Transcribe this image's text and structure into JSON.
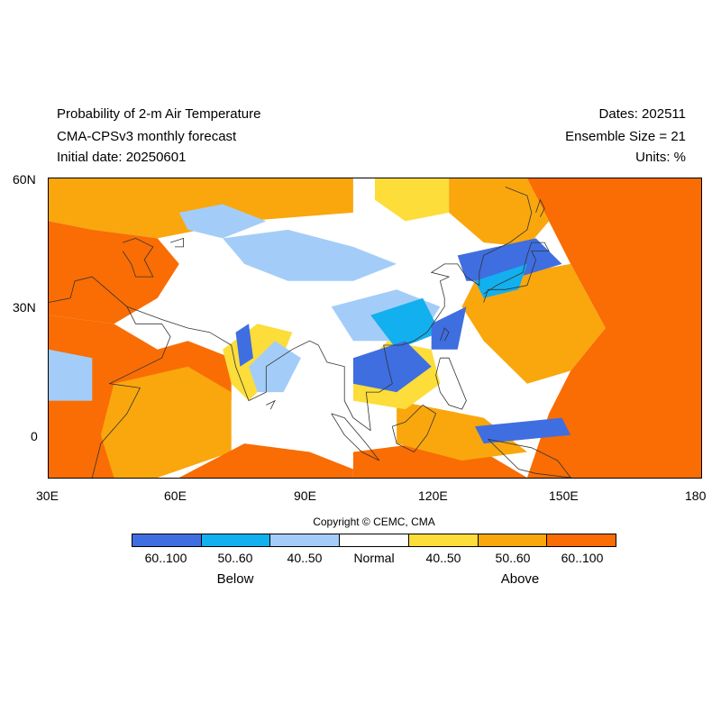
{
  "header": {
    "title": "Probability of 2-m Air Temperature",
    "model": "CMA-CPSv3 monthly forecast",
    "initial_date": "Initial date: 20250601",
    "dates": "Dates: 202511",
    "ensemble": "Ensemble Size = 21",
    "units": "Units: %"
  },
  "map": {
    "lat_labels": [
      "60N",
      "30N",
      "0"
    ],
    "lon_labels": [
      "30E",
      "60E",
      "90E",
      "120E",
      "150E",
      "180"
    ],
    "extent": {
      "lon_min": 30,
      "lon_max": 180,
      "lat_min": -10,
      "lat_max": 60
    }
  },
  "copyright": "Copyright © CEMC, CMA",
  "legend": {
    "colors": [
      "#3f6ee0",
      "#12b0ee",
      "#a3cdf8",
      "#ffffff",
      "#fcdd3a",
      "#f9a70d",
      "#f96d04"
    ],
    "labels": [
      "60..100",
      "50..60",
      "40..50",
      "Normal",
      "40..50",
      "50..60",
      "60..100"
    ],
    "below_label": "Below",
    "above_label": "Above"
  }
}
